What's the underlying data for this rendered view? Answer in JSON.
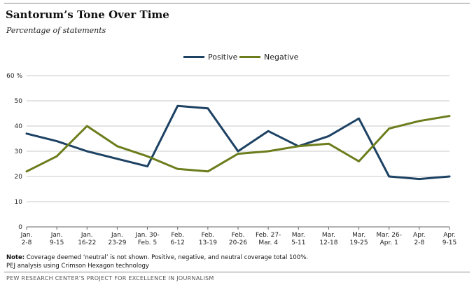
{
  "header": {
    "title": "Santorum’s Tone Over Time",
    "subtitle": "Percentage of statements"
  },
  "chart_data": {
    "type": "line",
    "title": "Santorum’s Tone Over Time",
    "subtitle": "Percentage of statements",
    "ylim": [
      0,
      60
    ],
    "yticks": [
      0,
      10,
      20,
      30,
      40,
      50,
      60
    ],
    "ytick_labels": [
      "0",
      "10",
      "20",
      "30",
      "40",
      "50",
      "60 %"
    ],
    "grid": true,
    "legend_position": "top-center",
    "categories": [
      [
        "Jan.",
        "2-8"
      ],
      [
        "Jan.",
        "9-15"
      ],
      [
        "Jan.",
        "16-22"
      ],
      [
        "Jan.",
        "23-29"
      ],
      [
        "Jan. 30-",
        "Feb. 5"
      ],
      [
        "Feb.",
        "6-12"
      ],
      [
        "Feb.",
        "13-19"
      ],
      [
        "Feb.",
        "20-26"
      ],
      [
        "Feb. 27-",
        "Mar. 4"
      ],
      [
        "Mar.",
        "5-11"
      ],
      [
        "Mar.",
        "12-18"
      ],
      [
        "Mar.",
        "19-25"
      ],
      [
        "Mar. 26-",
        "Apr. 1"
      ],
      [
        "Apr.",
        "2-8"
      ],
      [
        "Apr.",
        "9-15"
      ]
    ],
    "series": [
      {
        "name": "Positive",
        "color": "#1d4263",
        "values": [
          37,
          34,
          30,
          27,
          24,
          48,
          47,
          30,
          38,
          32,
          36,
          43,
          20,
          19,
          20
        ]
      },
      {
        "name": "Negative",
        "color": "#6b7d1c",
        "values": [
          22,
          28,
          40,
          32,
          28,
          23,
          22,
          29,
          30,
          32,
          33,
          26,
          39,
          42,
          44
        ]
      }
    ]
  },
  "footer": {
    "note_label": "Note:",
    "note_text": " Coverage deemed ‘neutral’ is not shown. Positive, negative, and neutral coverage total 100%.",
    "note2": "PEJ analysis using Crimson Hexagon technology",
    "credit": "PEW RESEARCH CENTER’S PROJECT FOR EXCELLENCE IN JOURNALISM"
  }
}
